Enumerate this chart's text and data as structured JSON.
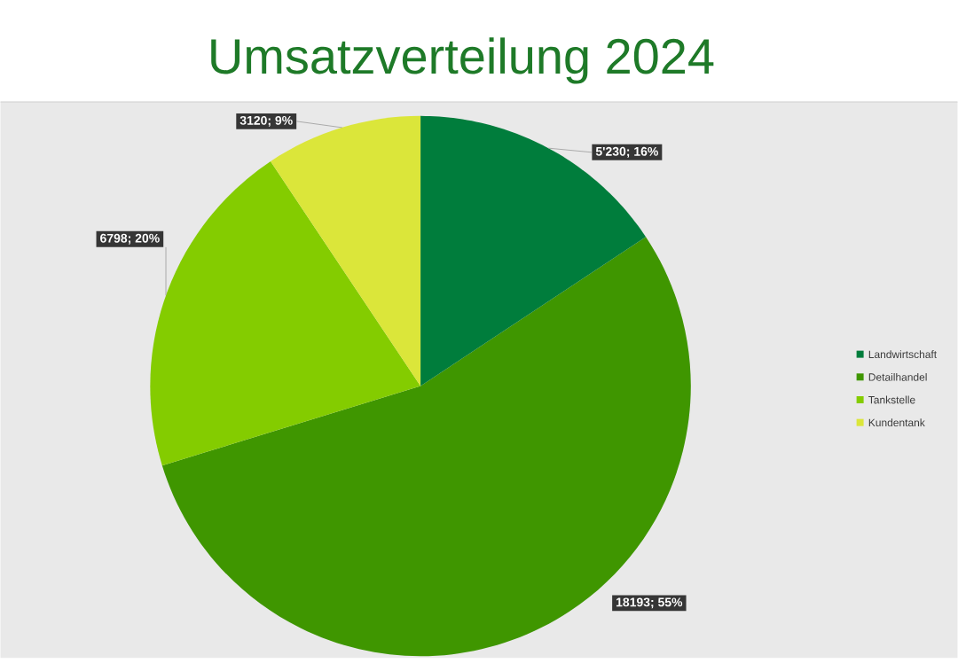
{
  "chart_data": {
    "type": "pie",
    "title": "Umsatzverteilung 2024",
    "categories": [
      "Landwirtschaft",
      "Detailhandel",
      "Tankstelle",
      "Kundentank"
    ],
    "values": [
      5230,
      18193,
      6798,
      3120
    ],
    "colors": [
      "#007d3c",
      "#3f9600",
      "#84cc00",
      "#dbe63a"
    ],
    "value_labels": [
      "5'230; 16%",
      "18193; 55%",
      "6798; 20%",
      "3120; 9%"
    ],
    "legend": "right"
  }
}
